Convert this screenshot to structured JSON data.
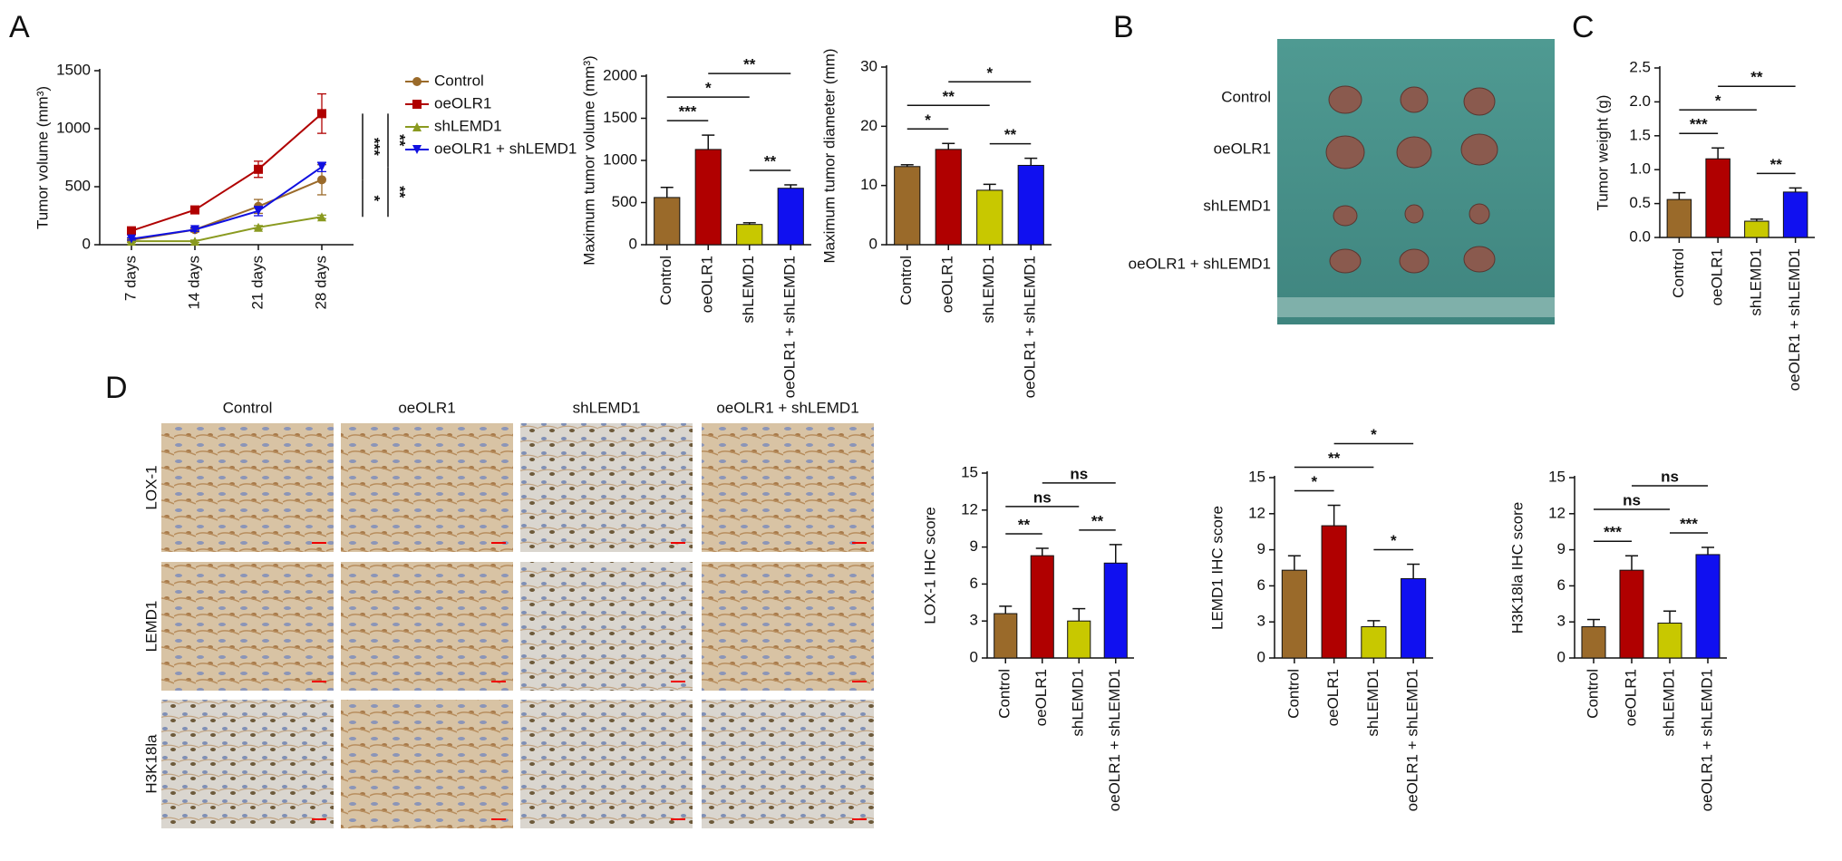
{
  "panel_labels": [
    "A",
    "B",
    "C",
    "D"
  ],
  "photo": {
    "row_labels": [
      "Control",
      "oeOLR1",
      "shLEMD1",
      "oeOLR1 + shLEMD1"
    ]
  },
  "ihc": {
    "columns": [
      "Control",
      "oeOLR1",
      "shLEMD1",
      "oeOLR1 + shLEMD1"
    ],
    "rows": [
      "LOX-1",
      "LEMD1",
      "H3K18la"
    ]
  },
  "chart_data": [
    {
      "type": "line",
      "ylabel": "Tumor volume (mm³)",
      "categories": [
        "7 days",
        "14 days",
        "21 days",
        "28 days"
      ],
      "ylim": [
        0,
        1500
      ],
      "yticks": [
        0,
        500,
        1000,
        1500
      ],
      "series": [
        {
          "name": "Control",
          "color": "#9a6a2a",
          "marker": "circle",
          "values": [
            40,
            130,
            330,
            560
          ],
          "errors": [
            20,
            20,
            60,
            130
          ]
        },
        {
          "name": "oeOLR1",
          "color": "#b00000",
          "marker": "square",
          "values": [
            120,
            300,
            650,
            1130
          ],
          "errors": [
            20,
            20,
            70,
            170
          ]
        },
        {
          "name": "shLEMD1",
          "color": "#8a9a20",
          "marker": "triangle",
          "values": [
            30,
            30,
            150,
            240
          ],
          "errors": [
            10,
            10,
            15,
            15
          ]
        },
        {
          "name": "oeOLR1 + shLEMD1",
          "color": "#1010e0",
          "marker": "down-triangle",
          "values": [
            50,
            130,
            290,
            670
          ],
          "errors": [
            10,
            15,
            40,
            40
          ]
        }
      ],
      "annotations": [
        {
          "text": "***",
          "between": [
            "oeOLR1",
            "Control"
          ]
        },
        {
          "text": "**",
          "between": [
            "oeOLR1",
            "oeOLR1 + shLEMD1"
          ]
        },
        {
          "text": "*",
          "between": [
            "Control",
            "shLEMD1"
          ]
        },
        {
          "text": "**",
          "between": [
            "oeOLR1 + shLEMD1",
            "shLEMD1"
          ]
        }
      ]
    },
    {
      "type": "bar",
      "ylabel": "Maximum tumor volume (mm³)",
      "categories": [
        "Control",
        "oeOLR1",
        "shLEMD1",
        "oeOLR1 + shLEMD1"
      ],
      "values": [
        560,
        1130,
        240,
        670
      ],
      "errors": [
        120,
        170,
        20,
        40
      ],
      "colors": [
        "#9a6a2a",
        "#b00000",
        "#c8c800",
        "#1010f0"
      ],
      "ylim": [
        0,
        2000
      ],
      "yticks": [
        0,
        500,
        1000,
        1500,
        2000
      ],
      "annotations": [
        {
          "text": "***",
          "between": [
            "Control",
            "oeOLR1"
          ]
        },
        {
          "text": "**",
          "between": [
            "shLEMD1",
            "oeOLR1 + shLEMD1"
          ]
        },
        {
          "text": "*",
          "between": [
            "Control",
            "shLEMD1"
          ]
        },
        {
          "text": "**",
          "between": [
            "oeOLR1",
            "oeOLR1 + shLEMD1"
          ]
        }
      ]
    },
    {
      "type": "bar",
      "ylabel": "Maximum tumor diameter (mm)",
      "categories": [
        "Control",
        "oeOLR1",
        "shLEMD1",
        "oeOLR1 + shLEMD1"
      ],
      "values": [
        13.2,
        16.1,
        9.2,
        13.4
      ],
      "errors": [
        0.3,
        1,
        1,
        1.2
      ],
      "colors": [
        "#9a6a2a",
        "#b00000",
        "#c8c800",
        "#1010f0"
      ],
      "ylim": [
        0,
        30
      ],
      "yticks": [
        0,
        10,
        20,
        30
      ],
      "annotations": [
        {
          "text": "*",
          "between": [
            "Control",
            "oeOLR1"
          ]
        },
        {
          "text": "**",
          "between": [
            "shLEMD1",
            "oeOLR1 + shLEMD1"
          ]
        },
        {
          "text": "**",
          "between": [
            "Control",
            "shLEMD1"
          ]
        },
        {
          "text": "*",
          "between": [
            "oeOLR1",
            "oeOLR1 + shLEMD1"
          ]
        }
      ]
    },
    {
      "type": "bar",
      "ylabel": "Tumor weight (g)",
      "categories": [
        "Control",
        "oeOLR1",
        "shLEMD1",
        "oeOLR1 + shLEMD1"
      ],
      "values": [
        0.56,
        1.16,
        0.24,
        0.67
      ],
      "errors": [
        0.1,
        0.16,
        0.03,
        0.06
      ],
      "colors": [
        "#9a6a2a",
        "#b00000",
        "#c8c800",
        "#1010f0"
      ],
      "ylim": [
        0,
        2.5
      ],
      "yticks": [
        {
          "value": 0,
          "label": "0.0"
        },
        0.5,
        {
          "value": 1,
          "label": "1.0"
        },
        1.5,
        {
          "value": 2,
          "label": "2.0"
        },
        2.5
      ],
      "annotations": [
        {
          "text": "***",
          "between": [
            "Control",
            "oeOLR1"
          ]
        },
        {
          "text": "**",
          "between": [
            "shLEMD1",
            "oeOLR1 + shLEMD1"
          ]
        },
        {
          "text": "*",
          "between": [
            "Control",
            "shLEMD1"
          ]
        },
        {
          "text": "**",
          "between": [
            "oeOLR1",
            "oeOLR1 + shLEMD1"
          ]
        }
      ]
    },
    {
      "type": "bar",
      "ylabel": "LOX-1 IHC score",
      "categories": [
        "Control",
        "oeOLR1",
        "shLEMD1",
        "oeOLR1 + shLEMD1"
      ],
      "values": [
        3.6,
        8.3,
        3.0,
        7.7
      ],
      "errors": [
        0.6,
        0.6,
        1.0,
        1.5
      ],
      "colors": [
        "#9a6a2a",
        "#b00000",
        "#c8c800",
        "#1010f0"
      ],
      "ylim": [
        0,
        15
      ],
      "yticks": [
        0,
        3,
        6,
        9,
        12,
        15
      ],
      "annotations": [
        {
          "text": "**",
          "between": [
            "Control",
            "oeOLR1"
          ]
        },
        {
          "text": "**",
          "between": [
            "shLEMD1",
            "oeOLR1 + shLEMD1"
          ]
        },
        {
          "text": "ns",
          "between": [
            "Control",
            "shLEMD1"
          ]
        },
        {
          "text": "ns",
          "between": [
            "oeOLR1",
            "oeOLR1 + shLEMD1"
          ]
        }
      ]
    },
    {
      "type": "bar",
      "ylabel": "LEMD1 IHC score",
      "categories": [
        "Control",
        "oeOLR1",
        "shLEMD1",
        "oeOLR1 + shLEMD1"
      ],
      "values": [
        7.3,
        11,
        2.6,
        6.6
      ],
      "errors": [
        1.2,
        1.7,
        0.5,
        1.2
      ],
      "colors": [
        "#9a6a2a",
        "#b00000",
        "#c8c800",
        "#1010f0"
      ],
      "ylim": [
        0,
        15
      ],
      "yticks": [
        0,
        3,
        6,
        9,
        12,
        15
      ],
      "annotations": [
        {
          "text": "*",
          "between": [
            "Control",
            "oeOLR1"
          ]
        },
        {
          "text": "*",
          "between": [
            "shLEMD1",
            "oeOLR1 + shLEMD1"
          ]
        },
        {
          "text": "**",
          "between": [
            "Control",
            "shLEMD1"
          ]
        },
        {
          "text": "*",
          "between": [
            "oeOLR1",
            "oeOLR1 + shLEMD1"
          ]
        }
      ]
    },
    {
      "type": "bar",
      "ylabel": "H3K18la IHC score",
      "categories": [
        "Control",
        "oeOLR1",
        "shLEMD1",
        "oeOLR1 + shLEMD1"
      ],
      "values": [
        2.6,
        7.3,
        2.9,
        8.6
      ],
      "errors": [
        0.6,
        1.2,
        1.0,
        0.6
      ],
      "colors": [
        "#9a6a2a",
        "#b00000",
        "#c8c800",
        "#1010f0"
      ],
      "ylim": [
        0,
        15
      ],
      "yticks": [
        0,
        3,
        6,
        9,
        12,
        15
      ],
      "annotations": [
        {
          "text": "***",
          "between": [
            "Control",
            "oeOLR1"
          ]
        },
        {
          "text": "***",
          "between": [
            "shLEMD1",
            "oeOLR1 + shLEMD1"
          ]
        },
        {
          "text": "ns",
          "between": [
            "Control",
            "shLEMD1"
          ]
        },
        {
          "text": "ns",
          "between": [
            "oeOLR1",
            "oeOLR1 + shLEMD1"
          ]
        }
      ]
    }
  ]
}
